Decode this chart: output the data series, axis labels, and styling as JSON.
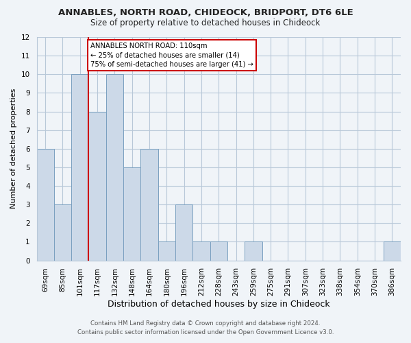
{
  "title": "ANNABLES, NORTH ROAD, CHIDEOCK, BRIDPORT, DT6 6LE",
  "subtitle": "Size of property relative to detached houses in Chideock",
  "xlabel": "Distribution of detached houses by size in Chideock",
  "ylabel": "Number of detached properties",
  "bin_labels": [
    "69sqm",
    "85sqm",
    "101sqm",
    "117sqm",
    "132sqm",
    "148sqm",
    "164sqm",
    "180sqm",
    "196sqm",
    "212sqm",
    "228sqm",
    "243sqm",
    "259sqm",
    "275sqm",
    "291sqm",
    "307sqm",
    "323sqm",
    "338sqm",
    "354sqm",
    "370sqm",
    "386sqm"
  ],
  "bar_heights": [
    6,
    3,
    10,
    8,
    10,
    5,
    6,
    1,
    3,
    1,
    1,
    0,
    1,
    0,
    0,
    0,
    0,
    0,
    0,
    0,
    1
  ],
  "bar_color": "#ccd9e8",
  "bar_edgecolor": "#7aa0c0",
  "vline_index": 2,
  "vline_color": "#cc0000",
  "annotation_line1": "ANNABLES NORTH ROAD: 110sqm",
  "annotation_line2": "← 25% of detached houses are smaller (14)",
  "annotation_line3": "75% of semi-detached houses are larger (41) →",
  "annotation_box_edgecolor": "#cc0000",
  "ylim": [
    0,
    12
  ],
  "yticks": [
    0,
    1,
    2,
    3,
    4,
    5,
    6,
    7,
    8,
    9,
    10,
    11,
    12
  ],
  "footer_line1": "Contains HM Land Registry data © Crown copyright and database right 2024.",
  "footer_line2": "Contains public sector information licensed under the Open Government Licence v3.0.",
  "bg_color": "#f0f4f8",
  "grid_color": "#b8c8d8",
  "title_fontsize": 9.5,
  "subtitle_fontsize": 8.5,
  "tick_fontsize": 7.5,
  "ylabel_fontsize": 8,
  "xlabel_fontsize": 9,
  "footer_fontsize": 6.2
}
